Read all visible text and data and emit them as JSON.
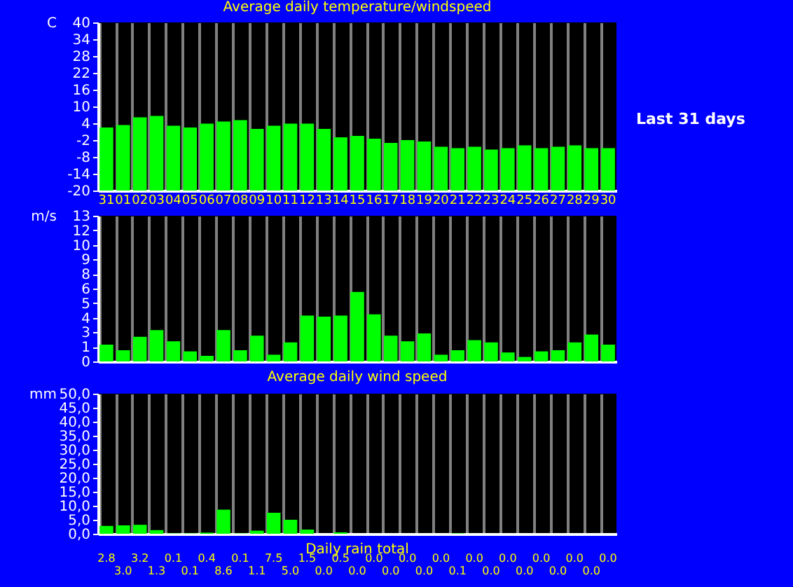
{
  "chart_data": [
    {
      "type": "bar",
      "title": "Average daily temperature/windspeed",
      "ylabel": "C",
      "annotations": [
        "Last 31 days"
      ],
      "categories": [
        "31",
        "01",
        "02",
        "03",
        "04",
        "05",
        "06",
        "07",
        "08",
        "09",
        "10",
        "11",
        "12",
        "13",
        "14",
        "15",
        "16",
        "17",
        "18",
        "19",
        "20",
        "21",
        "22",
        "23",
        "24",
        "25",
        "26",
        "27",
        "28",
        "29",
        "30"
      ],
      "base": [
        -20,
        -20,
        -20,
        -20,
        -20,
        -20,
        -20,
        -20,
        -20,
        -20,
        -20,
        -20,
        -20,
        -20,
        -20,
        -20,
        -20,
        -20,
        -20,
        -20,
        -20,
        -20,
        -20,
        -20,
        -20,
        -20,
        -20,
        -20,
        -20,
        -20,
        -20
      ],
      "values": [
        22.5,
        23.4,
        26.1,
        26.6,
        23.1,
        22.5,
        23.9,
        24.6,
        25.1,
        22.0,
        23.1,
        23.9,
        23.9,
        22.0,
        19.0,
        19.5,
        18.5,
        17.0,
        18.0,
        17.5,
        15.6,
        15.1,
        15.6,
        14.6,
        15.1,
        16.1,
        15.1,
        15.6,
        16.1,
        15.1,
        15.1
      ],
      "color": "#00ff00",
      "ylim": [
        -20,
        40
      ],
      "yticks": [
        -20,
        -14,
        -8,
        -2,
        4,
        10,
        16,
        22,
        28,
        34,
        40
      ],
      "grid": "x"
    },
    {
      "type": "bar",
      "title": "Average daily wind speed",
      "ylabel": "m/s",
      "tick_labels": "y",
      "categories": [
        "31",
        "01",
        "02",
        "03",
        "04",
        "05",
        "06",
        "07",
        "08",
        "09",
        "10",
        "11",
        "12",
        "13",
        "14",
        "15",
        "16",
        "17",
        "18",
        "19",
        "20",
        "21",
        "22",
        "23",
        "24",
        "25",
        "26",
        "27",
        "28",
        "29",
        "30"
      ],
      "values": [
        1.5,
        1.0,
        2.2,
        2.8,
        1.8,
        0.9,
        0.5,
        2.8,
        1.0,
        2.3,
        0.6,
        1.7,
        4.1,
        4.0,
        4.1,
        6.2,
        4.2,
        2.3,
        1.8,
        2.5,
        0.6,
        1.0,
        1.9,
        1.7,
        0.8,
        0.4,
        0.9,
        1.0,
        1.7,
        2.4,
        1.5
      ],
      "color": "#00ff00",
      "ylim": [
        0,
        13
      ],
      "yticks": [
        0,
        {
          "value": 1.3,
          "label": "1"
        },
        {
          "value": 2.6,
          "label": "3"
        },
        {
          "value": 3.9,
          "label": "4"
        },
        {
          "value": 5.2,
          "label": "5"
        },
        {
          "value": 6.5,
          "label": "6"
        },
        {
          "value": 7.8,
          "label": "8"
        },
        {
          "value": 9.1,
          "label": "9"
        },
        {
          "value": 10.4,
          "label": "10"
        },
        {
          "value": 11.7,
          "label": "12"
        },
        13
      ],
      "grid": "x"
    },
    {
      "type": "bar",
      "title": "Daily rain total",
      "ylabel": "mm",
      "tick_labels": "y",
      "categories": [
        "31",
        "01",
        "02",
        "03",
        "04",
        "05",
        "06",
        "07",
        "08",
        "09",
        "10",
        "11",
        "12",
        "13",
        "14",
        "15",
        "16",
        "17",
        "18",
        "19",
        "20",
        "21",
        "22",
        "23",
        "24",
        "25",
        "26",
        "27",
        "28",
        "29",
        "30"
      ],
      "values": [
        2.8,
        3.0,
        3.2,
        1.3,
        0.1,
        0.1,
        0.4,
        8.6,
        0.1,
        1.1,
        7.5,
        5.0,
        1.5,
        0.0,
        0.5,
        0.0,
        0.0,
        0.0,
        0.0,
        0.0,
        0.0,
        0.1,
        0.0,
        0.0,
        0.0,
        0.0,
        0.0,
        0.0,
        0.0,
        0.0,
        0.0
      ],
      "value_labels": [
        "2.8",
        "3.0",
        "3.2",
        "1.3",
        "0.1",
        "0.1",
        "0.4",
        "8.6",
        "0.1",
        "1.1",
        "7.5",
        "5.0",
        "1.5",
        "0.0",
        "0.5",
        "0.0",
        "0.0",
        "0.0",
        "0.0",
        "0.0",
        "0.0",
        "0.1",
        "0.0",
        "0.0",
        "0.0",
        "0.0",
        "0.0",
        "0.0",
        "0.0",
        "0.0",
        "0.0"
      ],
      "color": "#00ff00",
      "ylim": [
        0,
        50
      ],
      "yticks": [
        {
          "value": 0,
          "label": "0,0"
        },
        {
          "value": 5,
          "label": "5,0"
        },
        {
          "value": 10,
          "label": "10,0"
        },
        {
          "value": 15,
          "label": "15,0"
        },
        {
          "value": 20,
          "label": "20,0"
        },
        {
          "value": 25,
          "label": "25,0"
        },
        {
          "value": 30,
          "label": "30,0"
        },
        {
          "value": 35,
          "label": "35,0"
        },
        {
          "value": 40,
          "label": "40,0"
        },
        {
          "value": 45,
          "label": "45,0"
        },
        {
          "value": 50,
          "label": "50,0"
        }
      ],
      "grid": "x"
    }
  ]
}
